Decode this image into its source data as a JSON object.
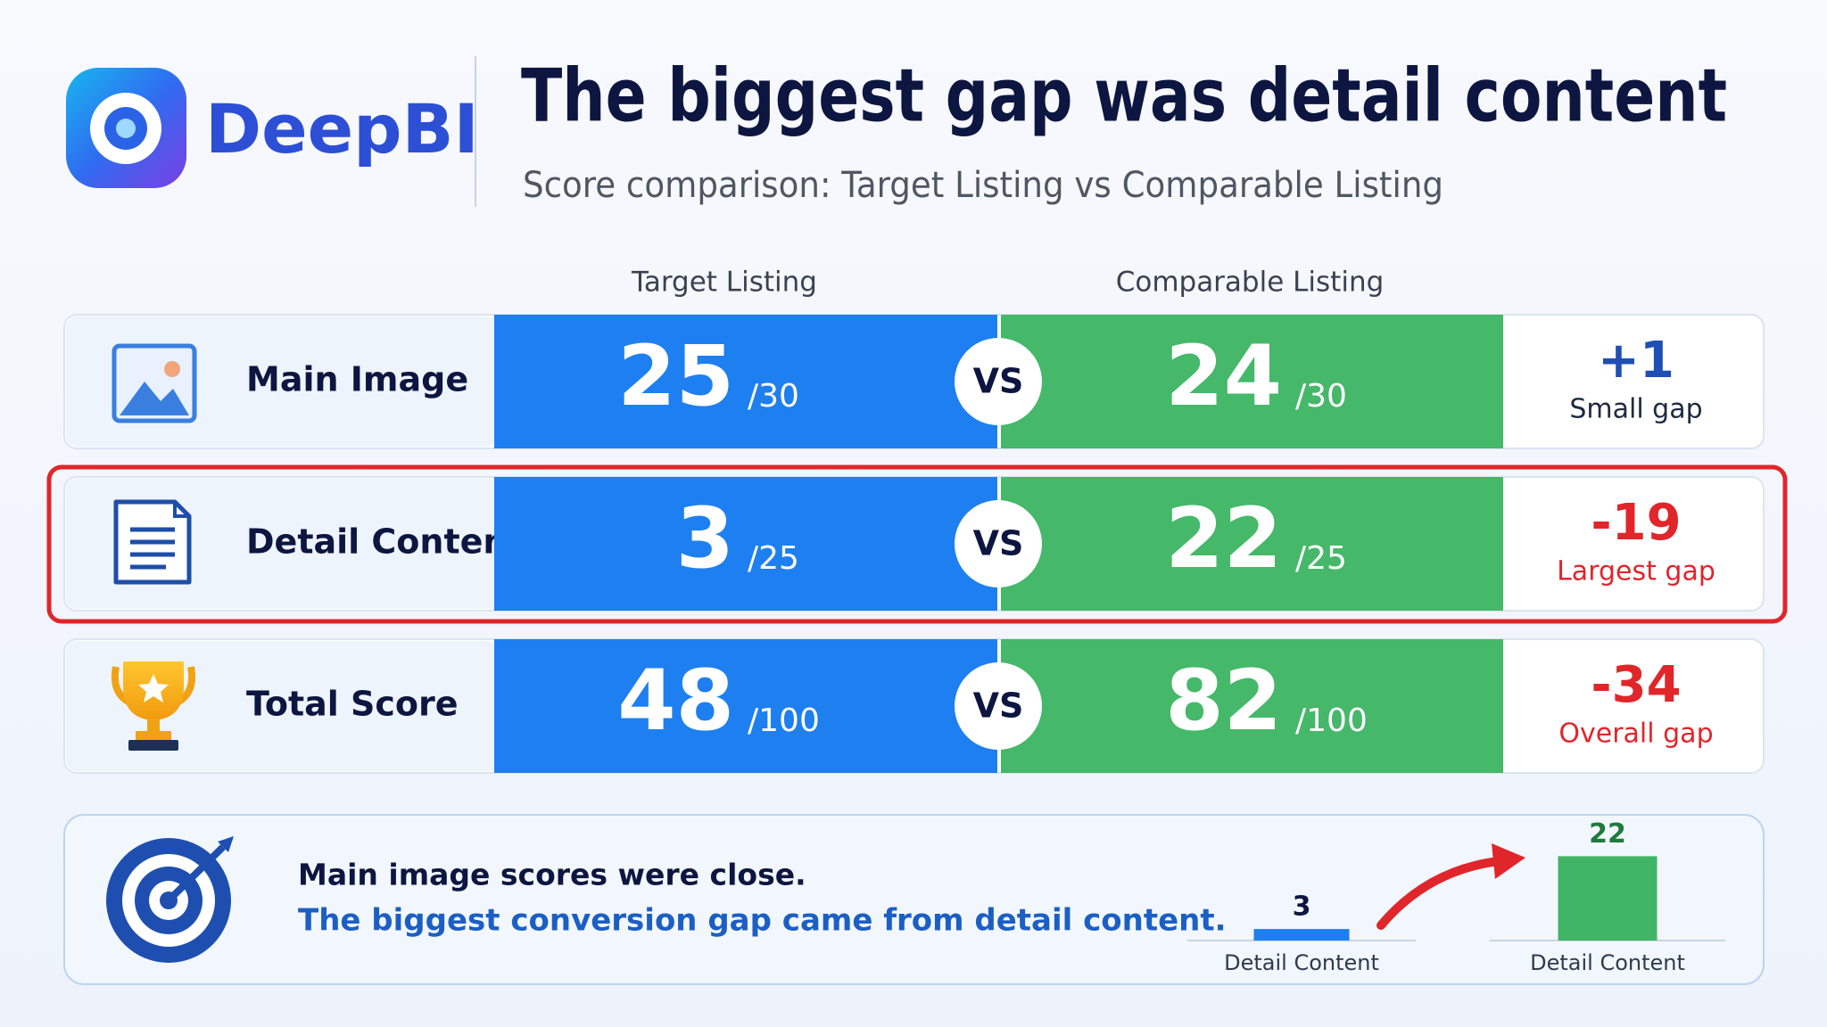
{
  "header": {
    "logo_text": "DeepBI",
    "title": "The biggest gap was detail content",
    "subtitle": "Score comparison: Target Listing vs Comparable Listing"
  },
  "columns": {
    "target": "Target Listing",
    "comparable": "Comparable Listing"
  },
  "vs_label": "VS",
  "rows": [
    {
      "label": "Main Image",
      "target_score": 25,
      "target_max": "/30",
      "comparable_score": 24,
      "comparable_max": "/30",
      "gap": "+1",
      "gap_label": "Small gap",
      "gap_color": "#1f4fb5"
    },
    {
      "label": "Detail Content",
      "target_score": 3,
      "target_max": "/25",
      "comparable_score": 22,
      "comparable_max": "/25",
      "gap": "-19",
      "gap_label": "Largest gap",
      "gap_color": "#e0262b"
    },
    {
      "label": "Total Score",
      "target_score": 48,
      "target_max": "/100",
      "comparable_score": 82,
      "comparable_max": "/100",
      "gap": "-34",
      "gap_label": "Overall gap",
      "gap_color": "#e0262b"
    }
  ],
  "summary": {
    "line1": "Main image scores were close.",
    "line2": "The biggest conversion gap came from detail content.",
    "chart": {
      "type": "bar",
      "categories": [
        "Detail Content",
        "Detail Content"
      ],
      "values": [
        3,
        22
      ],
      "colors": [
        "#1e7ff0",
        "#3fb565"
      ]
    }
  }
}
